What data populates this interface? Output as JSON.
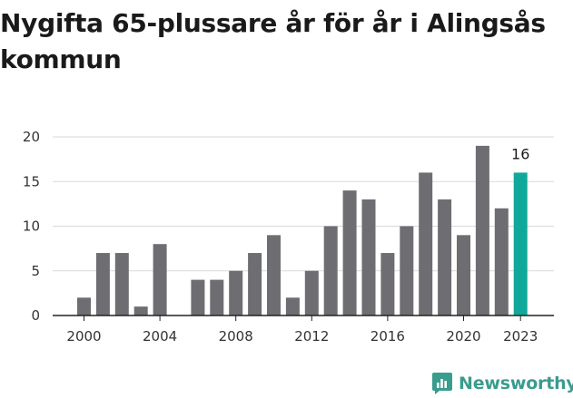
{
  "title": "Nygifta 65-plussare år för år i Alingsås kommun",
  "brand": {
    "name": "Newsworthy",
    "icon": "newsworthy-logo-icon"
  },
  "colors": {
    "bar": "#6e6d72",
    "highlight": "#10a89a",
    "grid": "#d9d9d9",
    "axis": "#222222"
  },
  "chart_data": {
    "type": "bar",
    "title": "Nygifta 65-plussare år för år i Alingsås kommun",
    "xlabel": "",
    "ylabel": "",
    "ylim": [
      0,
      20
    ],
    "yticks": [
      0,
      5,
      10,
      15,
      20
    ],
    "xticks": [
      "2000",
      "2004",
      "2008",
      "2012",
      "2016",
      "2020",
      "2023"
    ],
    "grid": true,
    "highlight_category": "2023",
    "categories": [
      "2000",
      "2001",
      "2002",
      "2003",
      "2004",
      "2005",
      "2006",
      "2007",
      "2008",
      "2009",
      "2010",
      "2011",
      "2012",
      "2013",
      "2014",
      "2015",
      "2016",
      "2017",
      "2018",
      "2019",
      "2020",
      "2021",
      "2022",
      "2023"
    ],
    "values": [
      2,
      7,
      7,
      1,
      8,
      0,
      4,
      4,
      5,
      7,
      9,
      2,
      5,
      10,
      14,
      13,
      7,
      10,
      16,
      13,
      9,
      19,
      12,
      16
    ],
    "data_labels": [
      {
        "category": "2023",
        "text": "16"
      }
    ]
  }
}
